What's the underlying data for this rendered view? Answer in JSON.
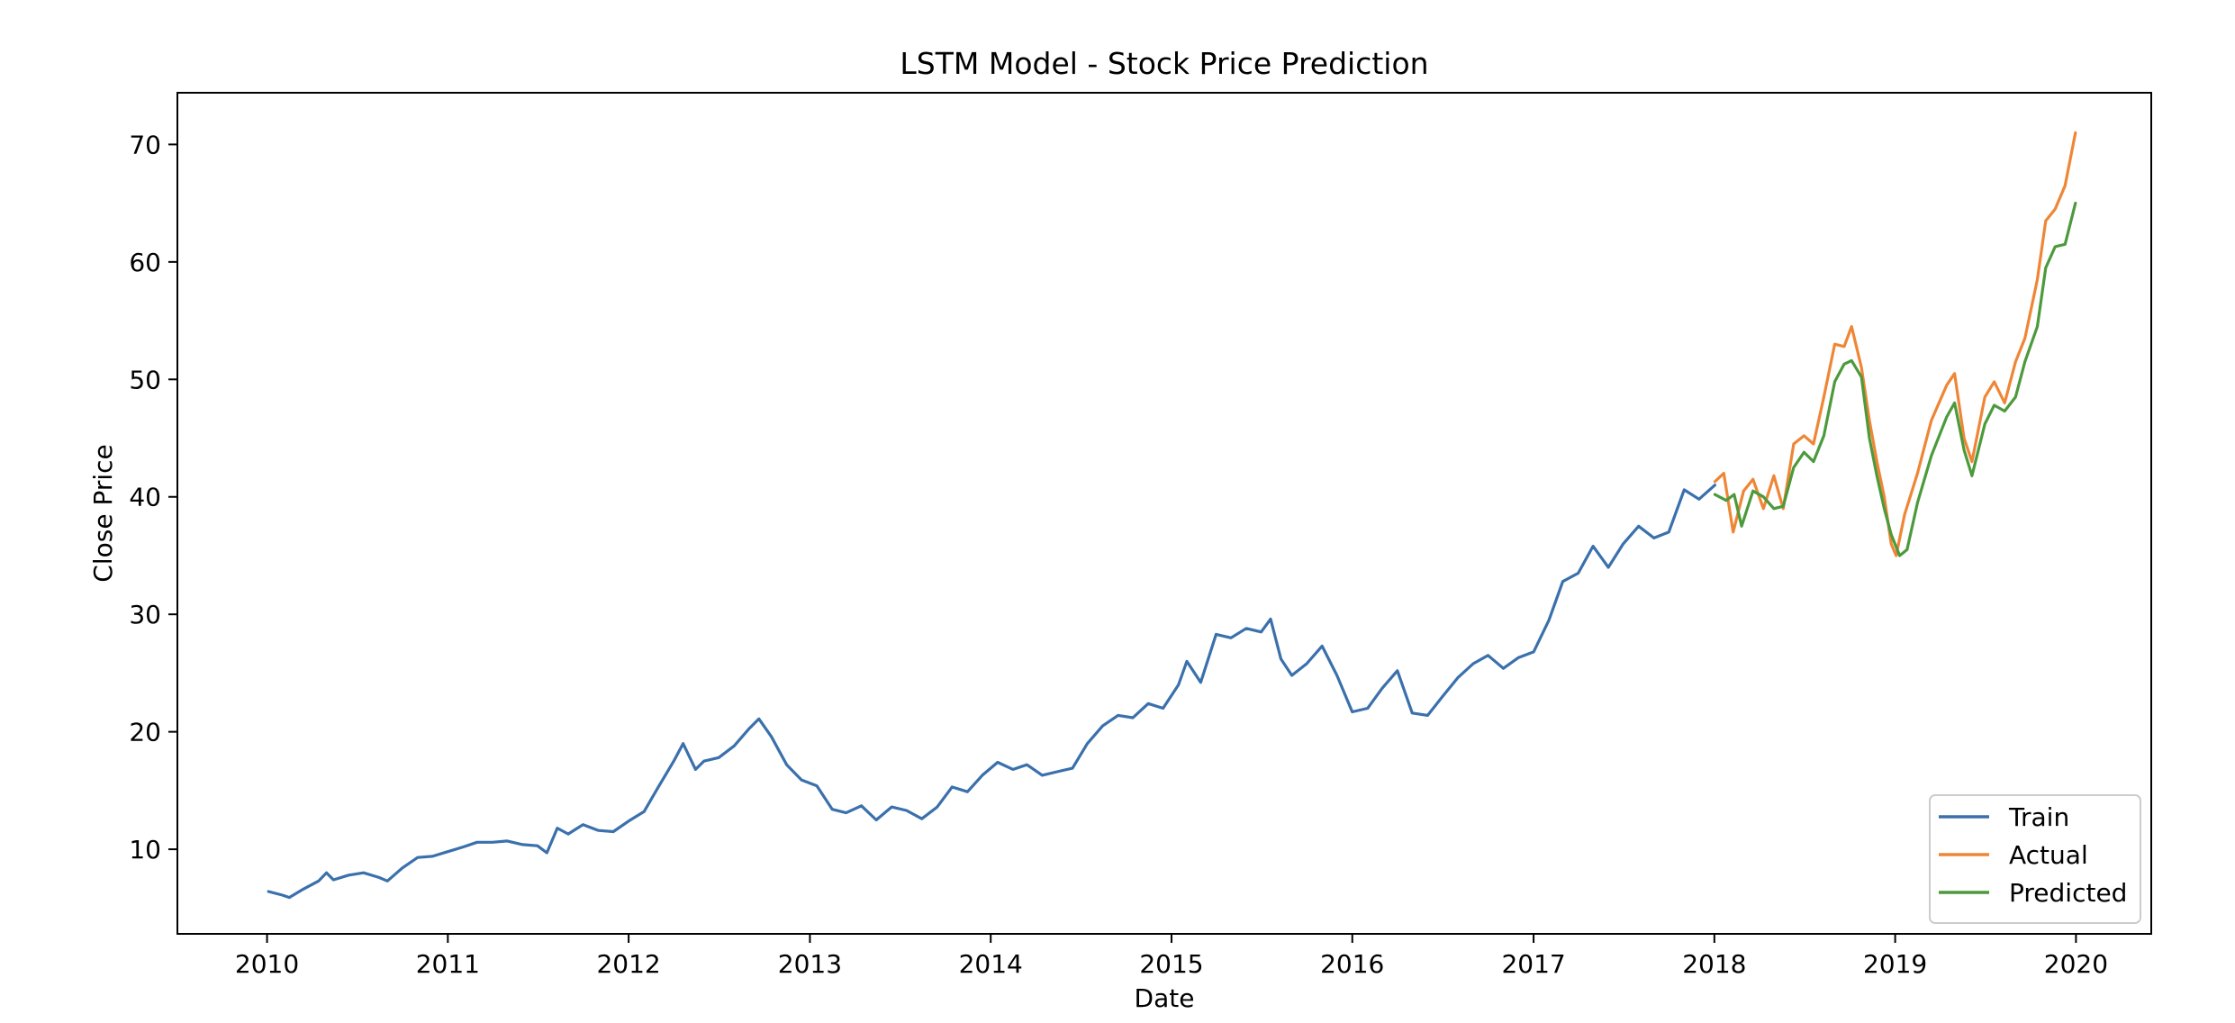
{
  "chart_data": {
    "type": "line",
    "title": "LSTM Model - Stock Price Prediction",
    "xlabel": "Date",
    "ylabel": "Close Price",
    "xlim": [
      "2009-07-04",
      "2020-06-01"
    ],
    "ylim": [
      2.8,
      74.4
    ],
    "x_ticks": [
      "2010",
      "2011",
      "2012",
      "2013",
      "2014",
      "2015",
      "2016",
      "2017",
      "2018",
      "2019",
      "2020"
    ],
    "y_ticks": [
      10,
      20,
      30,
      40,
      50,
      60,
      70
    ],
    "grid": false,
    "legend_position": "lower-right",
    "series": [
      {
        "name": "Train",
        "color": "#3a70ac",
        "points": [
          [
            "2010-01-04",
            6.4
          ],
          [
            "2010-02-01",
            6.1
          ],
          [
            "2010-02-15",
            5.9
          ],
          [
            "2010-03-15",
            6.6
          ],
          [
            "2010-04-15",
            7.3
          ],
          [
            "2010-05-01",
            8.0
          ],
          [
            "2010-05-15",
            7.4
          ],
          [
            "2010-06-15",
            7.8
          ],
          [
            "2010-07-15",
            8.0
          ],
          [
            "2010-08-15",
            7.6
          ],
          [
            "2010-09-01",
            7.3
          ],
          [
            "2010-10-01",
            8.4
          ],
          [
            "2010-11-01",
            9.3
          ],
          [
            "2010-12-01",
            9.4
          ],
          [
            "2011-01-01",
            9.8
          ],
          [
            "2011-02-01",
            10.2
          ],
          [
            "2011-03-01",
            10.6
          ],
          [
            "2011-04-01",
            10.6
          ],
          [
            "2011-05-01",
            10.7
          ],
          [
            "2011-06-01",
            10.4
          ],
          [
            "2011-07-01",
            10.3
          ],
          [
            "2011-07-20",
            9.7
          ],
          [
            "2011-08-10",
            11.8
          ],
          [
            "2011-09-01",
            11.3
          ],
          [
            "2011-10-01",
            12.1
          ],
          [
            "2011-11-01",
            11.6
          ],
          [
            "2011-12-01",
            11.5
          ],
          [
            "2012-01-01",
            12.4
          ],
          [
            "2012-02-01",
            13.2
          ],
          [
            "2012-03-01",
            15.3
          ],
          [
            "2012-04-01",
            17.5
          ],
          [
            "2012-04-20",
            19.0
          ],
          [
            "2012-05-15",
            16.8
          ],
          [
            "2012-06-01",
            17.5
          ],
          [
            "2012-07-01",
            17.8
          ],
          [
            "2012-08-01",
            18.8
          ],
          [
            "2012-09-01",
            20.3
          ],
          [
            "2012-09-20",
            21.1
          ],
          [
            "2012-10-15",
            19.6
          ],
          [
            "2012-11-15",
            17.2
          ],
          [
            "2012-12-15",
            15.9
          ],
          [
            "2013-01-15",
            15.4
          ],
          [
            "2013-02-15",
            13.4
          ],
          [
            "2013-03-15",
            13.1
          ],
          [
            "2013-04-15",
            13.7
          ],
          [
            "2013-05-15",
            12.5
          ],
          [
            "2013-06-15",
            13.6
          ],
          [
            "2013-07-15",
            13.3
          ],
          [
            "2013-08-15",
            12.6
          ],
          [
            "2013-09-15",
            13.6
          ],
          [
            "2013-10-15",
            15.3
          ],
          [
            "2013-11-15",
            14.9
          ],
          [
            "2013-12-15",
            16.3
          ],
          [
            "2014-01-15",
            17.4
          ],
          [
            "2014-02-15",
            16.8
          ],
          [
            "2014-03-15",
            17.2
          ],
          [
            "2014-04-15",
            16.3
          ],
          [
            "2014-05-15",
            16.6
          ],
          [
            "2014-06-15",
            16.9
          ],
          [
            "2014-07-15",
            19.0
          ],
          [
            "2014-08-15",
            20.5
          ],
          [
            "2014-09-15",
            21.4
          ],
          [
            "2014-10-15",
            21.2
          ],
          [
            "2014-11-15",
            22.4
          ],
          [
            "2014-12-15",
            22.0
          ],
          [
            "2015-01-15",
            24.0
          ],
          [
            "2015-02-01",
            26.0
          ],
          [
            "2015-03-01",
            24.2
          ],
          [
            "2015-04-01",
            28.3
          ],
          [
            "2015-05-01",
            28.0
          ],
          [
            "2015-06-01",
            28.8
          ],
          [
            "2015-07-01",
            28.5
          ],
          [
            "2015-07-20",
            29.6
          ],
          [
            "2015-08-10",
            26.2
          ],
          [
            "2015-09-01",
            24.8
          ],
          [
            "2015-10-01",
            25.8
          ],
          [
            "2015-11-01",
            27.3
          ],
          [
            "2015-12-01",
            24.8
          ],
          [
            "2016-01-01",
            21.7
          ],
          [
            "2016-02-01",
            22.0
          ],
          [
            "2016-03-01",
            23.7
          ],
          [
            "2016-04-01",
            25.2
          ],
          [
            "2016-05-01",
            21.6
          ],
          [
            "2016-06-01",
            21.4
          ],
          [
            "2016-07-01",
            23.0
          ],
          [
            "2016-08-01",
            24.6
          ],
          [
            "2016-09-01",
            25.8
          ],
          [
            "2016-10-01",
            26.5
          ],
          [
            "2016-11-01",
            25.4
          ],
          [
            "2016-12-01",
            26.3
          ],
          [
            "2017-01-01",
            26.8
          ],
          [
            "2017-02-01",
            29.5
          ],
          [
            "2017-03-01",
            32.8
          ],
          [
            "2017-04-01",
            33.5
          ],
          [
            "2017-05-01",
            35.8
          ],
          [
            "2017-06-01",
            34.0
          ],
          [
            "2017-07-01",
            36.0
          ],
          [
            "2017-08-01",
            37.5
          ],
          [
            "2017-09-01",
            36.5
          ],
          [
            "2017-10-01",
            37.0
          ],
          [
            "2017-11-01",
            40.6
          ],
          [
            "2017-12-01",
            39.8
          ],
          [
            "2018-01-02",
            41.0
          ]
        ]
      },
      {
        "name": "Actual",
        "color": "#ef8636",
        "points": [
          [
            "2018-01-02",
            41.3
          ],
          [
            "2018-01-20",
            42.0
          ],
          [
            "2018-02-08",
            37.0
          ],
          [
            "2018-03-01",
            40.5
          ],
          [
            "2018-03-20",
            41.5
          ],
          [
            "2018-04-10",
            39.0
          ],
          [
            "2018-05-01",
            41.8
          ],
          [
            "2018-05-20",
            39.0
          ],
          [
            "2018-06-10",
            44.5
          ],
          [
            "2018-07-01",
            45.2
          ],
          [
            "2018-07-20",
            44.5
          ],
          [
            "2018-08-10",
            48.5
          ],
          [
            "2018-09-01",
            53.0
          ],
          [
            "2018-09-20",
            52.8
          ],
          [
            "2018-10-05",
            54.5
          ],
          [
            "2018-10-25",
            51.0
          ],
          [
            "2018-11-10",
            46.5
          ],
          [
            "2018-11-25",
            43.0
          ],
          [
            "2018-12-10",
            40.0
          ],
          [
            "2018-12-24",
            36.0
          ],
          [
            "2019-01-03",
            35.0
          ],
          [
            "2019-01-20",
            38.5
          ],
          [
            "2019-02-15",
            42.0
          ],
          [
            "2019-03-15",
            46.5
          ],
          [
            "2019-04-15",
            49.5
          ],
          [
            "2019-05-01",
            50.5
          ],
          [
            "2019-05-20",
            45.0
          ],
          [
            "2019-06-05",
            43.0
          ],
          [
            "2019-07-01",
            48.5
          ],
          [
            "2019-07-20",
            49.8
          ],
          [
            "2019-08-10",
            48.0
          ],
          [
            "2019-09-01",
            51.5
          ],
          [
            "2019-09-20",
            53.5
          ],
          [
            "2019-10-15",
            58.5
          ],
          [
            "2019-11-01",
            63.5
          ],
          [
            "2019-11-20",
            64.5
          ],
          [
            "2019-12-10",
            66.5
          ],
          [
            "2019-12-31",
            71.0
          ]
        ]
      },
      {
        "name": "Predicted",
        "color": "#4c9a3c",
        "points": [
          [
            "2018-01-02",
            40.2
          ],
          [
            "2018-01-25",
            39.7
          ],
          [
            "2018-02-10",
            40.2
          ],
          [
            "2018-02-25",
            37.5
          ],
          [
            "2018-03-20",
            40.5
          ],
          [
            "2018-04-10",
            40.0
          ],
          [
            "2018-05-01",
            39.0
          ],
          [
            "2018-05-20",
            39.2
          ],
          [
            "2018-06-10",
            42.5
          ],
          [
            "2018-07-01",
            43.8
          ],
          [
            "2018-07-20",
            43.0
          ],
          [
            "2018-08-10",
            45.2
          ],
          [
            "2018-09-01",
            49.8
          ],
          [
            "2018-09-20",
            51.3
          ],
          [
            "2018-10-05",
            51.6
          ],
          [
            "2018-10-25",
            50.2
          ],
          [
            "2018-11-10",
            45.0
          ],
          [
            "2018-11-25",
            41.8
          ],
          [
            "2018-12-10",
            39.0
          ],
          [
            "2018-12-24",
            36.8
          ],
          [
            "2019-01-10",
            35.0
          ],
          [
            "2019-01-25",
            35.5
          ],
          [
            "2019-02-15",
            39.5
          ],
          [
            "2019-03-15",
            43.5
          ],
          [
            "2019-04-15",
            46.8
          ],
          [
            "2019-05-01",
            48.0
          ],
          [
            "2019-05-20",
            44.0
          ],
          [
            "2019-06-05",
            41.8
          ],
          [
            "2019-07-01",
            46.2
          ],
          [
            "2019-07-20",
            47.8
          ],
          [
            "2019-08-10",
            47.3
          ],
          [
            "2019-09-01",
            48.5
          ],
          [
            "2019-09-20",
            51.5
          ],
          [
            "2019-10-15",
            54.5
          ],
          [
            "2019-11-01",
            59.5
          ],
          [
            "2019-11-20",
            61.3
          ],
          [
            "2019-12-10",
            61.5
          ],
          [
            "2019-12-31",
            65.0
          ]
        ]
      }
    ]
  }
}
